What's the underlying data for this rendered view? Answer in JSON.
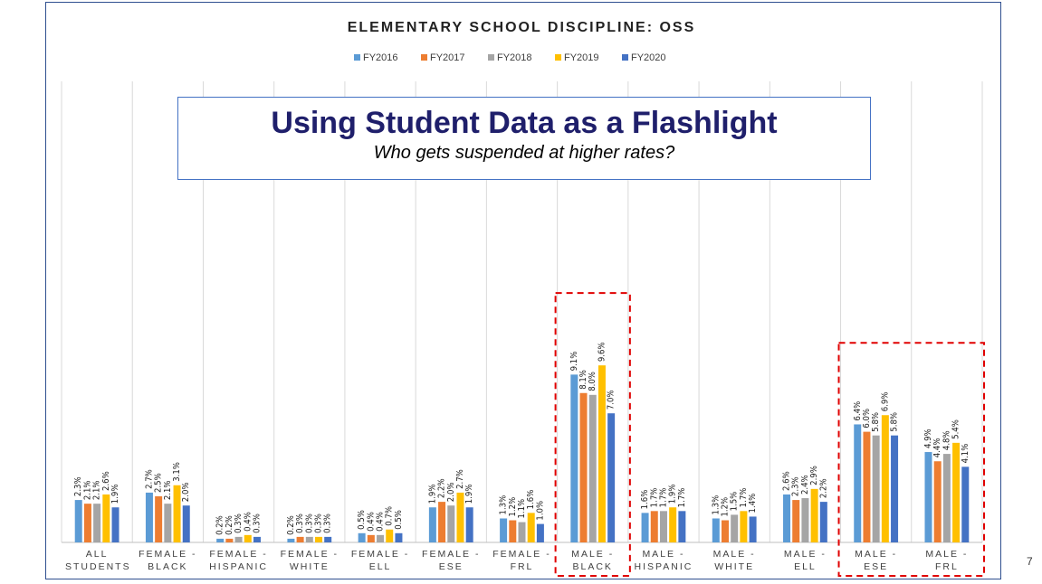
{
  "chart_data": {
    "type": "bar",
    "title": "ELEMENTARY SCHOOL DISCIPLINE: OSS",
    "categories": [
      "ALL STUDENTS",
      "FEMALE - BLACK",
      "FEMALE - HISPANIC",
      "FEMALE - WHITE",
      "FEMALE - ELL",
      "FEMALE - ESE",
      "FEMALE - FRL",
      "MALE - BLACK",
      "MALE - HISPANIC",
      "MALE - WHITE",
      "MALE - ELL",
      "MALE - ESE",
      "MALE - FRL"
    ],
    "series": [
      {
        "name": "FY2016",
        "color": "#5b9bd5",
        "values": [
          2.3,
          2.7,
          0.2,
          0.2,
          0.5,
          1.9,
          1.3,
          9.1,
          1.6,
          1.3,
          2.6,
          6.4,
          4.9
        ],
        "value_labels": [
          "2.3%",
          "2.7%",
          "0.2%",
          "0.2%",
          "0.5%",
          "1.9%",
          "1.3%",
          "9.1%",
          "1.6%",
          "1.3%",
          "2.6%",
          "6.4%",
          "4.9%"
        ]
      },
      {
        "name": "FY2017",
        "color": "#ed7d31",
        "values": [
          2.1,
          2.5,
          0.2,
          0.3,
          0.4,
          2.2,
          1.2,
          8.1,
          1.7,
          1.2,
          2.3,
          6.0,
          4.4
        ],
        "value_labels": [
          "2.1%",
          "2.5%",
          "0.2%",
          "0.3%",
          "0.4%",
          "2.2%",
          "1.2%",
          "8.1%",
          "1.7%",
          "1.2%",
          "2.3%",
          "6.0%",
          "4.4%"
        ]
      },
      {
        "name": "FY2018",
        "color": "#a5a5a5",
        "values": [
          2.1,
          2.1,
          0.3,
          0.3,
          0.4,
          2.0,
          1.1,
          8.0,
          1.7,
          1.5,
          2.4,
          5.8,
          4.8
        ],
        "value_labels": [
          "2.1%",
          "2.1%",
          "0.3%",
          "0.3%",
          "0.4%",
          "2.0%",
          "1.1%",
          "8.0%",
          "1.7%",
          "1.5%",
          "2.4%",
          "5.8%",
          "4.8%"
        ]
      },
      {
        "name": "FY2019",
        "color": "#ffc000",
        "values": [
          2.6,
          3.1,
          0.4,
          0.3,
          0.7,
          2.7,
          1.6,
          9.6,
          1.9,
          1.7,
          2.9,
          6.9,
          5.4
        ],
        "value_labels": [
          "2.6%",
          "3.1%",
          "0.4%",
          "0.3%",
          "0.7%",
          "2.7%",
          "1.6%",
          "9.6%",
          "1.9%",
          "1.7%",
          "2.9%",
          "6.9%",
          "5.4%"
        ]
      },
      {
        "name": "FY2020",
        "color": "#4472c4",
        "values": [
          1.9,
          2.0,
          0.3,
          0.3,
          0.5,
          1.9,
          1.0,
          7.0,
          1.7,
          1.4,
          2.2,
          5.8,
          4.1
        ],
        "value_labels": [
          "1.9%",
          "2.0%",
          "0.3%",
          "0.3%",
          "0.5%",
          "1.9%",
          "1.0%",
          "7.0%",
          "1.7%",
          "1.4%",
          "2.2%",
          "5.8%",
          "4.1%"
        ]
      }
    ],
    "ylim": [
      0,
      25
    ],
    "legend": "top",
    "category_separators": true,
    "highlights": [
      [
        7,
        7
      ],
      [
        11,
        12
      ]
    ],
    "highlight_color": "#e00000",
    "annotation": {
      "title": "Using Student Data as a Flashlight",
      "subtitle": "Who gets suspended at higher rates?"
    }
  },
  "slide_number": "7"
}
